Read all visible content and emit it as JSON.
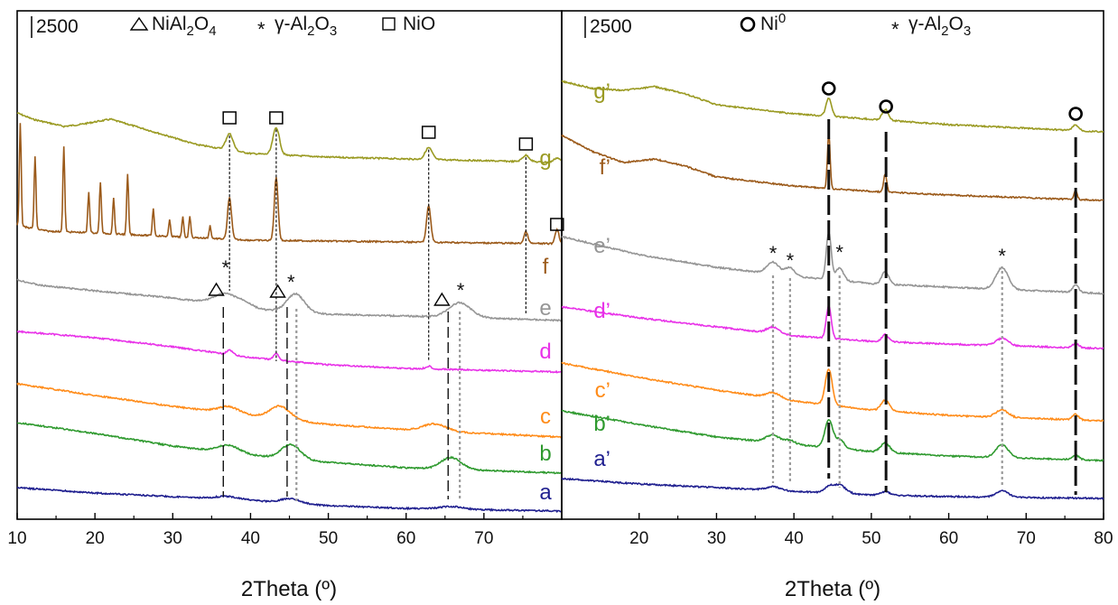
{
  "chart_data": [
    {
      "type": "line",
      "panel": "left",
      "xlabel": "2Theta (º)",
      "ylabel": "",
      "xlim": [
        10,
        80
      ],
      "x_ticks": [
        "10",
        "20",
        "30",
        "40",
        "50",
        "60",
        "70"
      ],
      "scale_bar": "2500",
      "legend": [
        {
          "symbol": "triangle",
          "label": "NiAl",
          "sub1": "2",
          "mid": "O",
          "sub2": "4"
        },
        {
          "symbol": "asterisk",
          "label": "γ-Al",
          "sub1": "2",
          "mid": "O",
          "sub2": "3"
        },
        {
          "symbol": "square",
          "label": "NiO",
          "sub1": "",
          "mid": "",
          "sub2": ""
        }
      ],
      "series": [
        {
          "name": "g",
          "color": "#9a9a22",
          "baseline": 178,
          "rise": [
            [
              10,
              125
            ],
            [
              12,
              132
            ],
            [
              16,
              140
            ],
            [
              18,
              138
            ],
            [
              22,
              132
            ],
            [
              26,
              142
            ],
            [
              33,
              160
            ],
            [
              40,
              170
            ],
            [
              50,
              174
            ],
            [
              80,
              180
            ]
          ],
          "peaks": [
            [
              37.3,
              18,
              0.45
            ],
            [
              43.3,
              30,
              0.42
            ],
            [
              62.9,
              13,
              0.45
            ],
            [
              75.4,
              7,
              0.45
            ],
            [
              79.4,
              5,
              0.4
            ]
          ]
        },
        {
          "name": "f",
          "color": "#9b5a1a",
          "baseline": 269,
          "rise": [
            [
              10,
              250
            ],
            [
              14,
              256
            ],
            [
              20,
              258
            ],
            [
              30,
              262
            ],
            [
              40,
              266
            ],
            [
              60,
              268
            ],
            [
              80,
              270
            ]
          ],
          "peaks": [
            [
              10.4,
              115,
              0.12
            ],
            [
              12.3,
              80,
              0.12
            ],
            [
              16,
              94,
              0.12
            ],
            [
              19.2,
              45,
              0.12
            ],
            [
              20.7,
              57,
              0.12
            ],
            [
              22.4,
              40,
              0.12
            ],
            [
              24.2,
              67,
              0.12
            ],
            [
              27.5,
              30,
              0.12
            ],
            [
              29.6,
              18,
              0.12
            ],
            [
              31.3,
              22,
              0.12
            ],
            [
              32.2,
              24,
              0.12
            ],
            [
              34.8,
              14,
              0.12
            ],
            [
              37.3,
              46,
              0.25
            ],
            [
              43.3,
              70,
              0.24
            ],
            [
              62.9,
              40,
              0.27
            ],
            [
              75.4,
              13,
              0.25
            ],
            [
              79.4,
              16,
              0.25
            ]
          ]
        },
        {
          "name": "e",
          "color": "#959595",
          "baseline": 352,
          "rise": [
            [
              10,
              310
            ],
            [
              13,
              316
            ],
            [
              20,
              322
            ],
            [
              30,
              330
            ],
            [
              35,
              336
            ],
            [
              40,
              342
            ],
            [
              50,
              348
            ],
            [
              60,
              350
            ],
            [
              70,
              352
            ],
            [
              80,
              355
            ]
          ],
          "peaks": [
            [
              36.9,
              13,
              1.6
            ],
            [
              45.8,
              20,
              1.1
            ],
            [
              66.9,
              16,
              1.4
            ],
            [
              39.5,
              4,
              0.9
            ]
          ]
        },
        {
          "name": "d",
          "color": "#e832e8",
          "baseline": 410,
          "rise": [
            [
              10,
              367
            ],
            [
              20,
              374
            ],
            [
              30,
              384
            ],
            [
              40,
              396
            ],
            [
              50,
              404
            ],
            [
              60,
              408
            ],
            [
              80,
              412
            ]
          ],
          "peaks": [
            [
              37.3,
              5,
              0.4
            ],
            [
              43.3,
              7,
              0.35
            ],
            [
              62.9,
              3,
              0.4
            ]
          ]
        },
        {
          "name": "c",
          "color": "#ff8c1a",
          "baseline": 482,
          "rise": [
            [
              10,
              425
            ],
            [
              20,
              438
            ],
            [
              30,
              450
            ],
            [
              40,
              460
            ],
            [
              50,
              470
            ],
            [
              60,
              476
            ],
            [
              80,
              484
            ]
          ],
          "peaks": [
            [
              37.2,
              7,
              1.3
            ],
            [
              43.8,
              14,
              1.3
            ],
            [
              63.7,
              8,
              1.5
            ]
          ]
        },
        {
          "name": "b",
          "color": "#2f9a2f",
          "baseline": 523,
          "rise": [
            [
              10,
              468
            ],
            [
              20,
              480
            ],
            [
              30,
              494
            ],
            [
              40,
              504
            ],
            [
              50,
              512
            ],
            [
              60,
              518
            ],
            [
              80,
              524
            ]
          ],
          "peaks": [
            [
              37.2,
              8,
              1.4
            ],
            [
              45.2,
              16,
              1.2
            ],
            [
              65.8,
              13,
              1.3
            ]
          ]
        },
        {
          "name": "a",
          "color": "#1f1f8f",
          "baseline": 566,
          "rise": [
            [
              10,
              540
            ],
            [
              20,
              546
            ],
            [
              30,
              550
            ],
            [
              40,
              554
            ],
            [
              50,
              560
            ],
            [
              60,
              563
            ],
            [
              80,
              566
            ]
          ],
          "peaks": [
            [
              37,
              3,
              1.5
            ],
            [
              45.2,
              5,
              1.2
            ],
            [
              65.8,
              3,
              1.4
            ]
          ]
        }
      ]
    },
    {
      "type": "line",
      "panel": "right",
      "xlabel": "2Theta (º)",
      "ylabel": "",
      "xlim": [
        10,
        80
      ],
      "x_ticks": [
        "20",
        "30",
        "40",
        "50",
        "60",
        "70",
        "80"
      ],
      "scale_bar": "2500",
      "legend": [
        {
          "symbol": "circle",
          "label": "Ni",
          "sup": "0",
          "sub1": "",
          "mid": "",
          "sub2": ""
        },
        {
          "symbol": "asterisk",
          "label": "γ-Al",
          "sub1": "2",
          "mid": "O",
          "sub2": "3"
        }
      ],
      "series": [
        {
          "name": "g’",
          "color": "#9a9a22",
          "baseline": 145,
          "rise": [
            [
              10,
              90
            ],
            [
              14,
              98
            ],
            [
              18,
              100
            ],
            [
              22,
              96
            ],
            [
              26,
              104
            ],
            [
              30,
              116
            ],
            [
              40,
              126
            ],
            [
              50,
              132
            ],
            [
              60,
              138
            ],
            [
              80,
              146
            ]
          ],
          "peaks": [
            [
              44.5,
              20,
              0.35
            ],
            [
              51.8,
              12,
              0.4
            ],
            [
              76.4,
              6,
              0.4
            ]
          ]
        },
        {
          "name": "f’",
          "color": "#9b5a1a",
          "baseline": 222,
          "rise": [
            [
              10,
              150
            ],
            [
              14,
              168
            ],
            [
              18,
              180
            ],
            [
              22,
              176
            ],
            [
              26,
              184
            ],
            [
              30,
              196
            ],
            [
              40,
              206
            ],
            [
              50,
              212
            ],
            [
              60,
              216
            ],
            [
              80,
              222
            ]
          ],
          "peaks": [
            [
              44.5,
              62,
              0.17
            ],
            [
              51.8,
              20,
              0.2
            ],
            [
              76.4,
              10,
              0.2
            ]
          ]
        },
        {
          "name": "e’",
          "color": "#959595",
          "baseline": 325,
          "rise": [
            [
              10,
              262
            ],
            [
              20,
              282
            ],
            [
              30,
              296
            ],
            [
              40,
              306
            ],
            [
              50,
              314
            ],
            [
              60,
              318
            ],
            [
              80,
              325
            ]
          ],
          "peaks": [
            [
              37.3,
              13,
              0.8
            ],
            [
              39.5,
              9,
              0.6
            ],
            [
              44.5,
              52,
              0.32
            ],
            [
              45.9,
              14,
              0.5
            ],
            [
              51.8,
              14,
              0.45
            ],
            [
              66.9,
              24,
              0.8
            ],
            [
              76.4,
              8,
              0.4
            ]
          ]
        },
        {
          "name": "d’",
          "color": "#e832e8",
          "baseline": 385,
          "rise": [
            [
              10,
              340
            ],
            [
              20,
              352
            ],
            [
              30,
              362
            ],
            [
              40,
              372
            ],
            [
              50,
              378
            ],
            [
              60,
              381
            ],
            [
              80,
              386
            ]
          ],
          "peaks": [
            [
              37.3,
              7,
              0.8
            ],
            [
              44.5,
              36,
              0.32
            ],
            [
              51.8,
              8,
              0.45
            ],
            [
              66.9,
              8,
              0.8
            ],
            [
              76.4,
              5,
              0.4
            ]
          ]
        },
        {
          "name": "c’",
          "color": "#ff8c1a",
          "baseline": 466,
          "rise": [
            [
              10,
              402
            ],
            [
              20,
              418
            ],
            [
              30,
              432
            ],
            [
              40,
              444
            ],
            [
              50,
              454
            ],
            [
              60,
              460
            ],
            [
              80,
              466
            ]
          ],
          "peaks": [
            [
              37.3,
              6,
              0.9
            ],
            [
              44.5,
              40,
              0.45
            ],
            [
              51.8,
              12,
              0.55
            ],
            [
              66.9,
              8,
              0.8
            ],
            [
              76.4,
              6,
              0.4
            ]
          ]
        },
        {
          "name": "b’",
          "color": "#2f9a2f",
          "baseline": 510,
          "rise": [
            [
              10,
              455
            ],
            [
              20,
              470
            ],
            [
              30,
              484
            ],
            [
              40,
              492
            ],
            [
              50,
              500
            ],
            [
              60,
              505
            ],
            [
              80,
              510
            ]
          ],
          "peaks": [
            [
              37.3,
              8,
              0.9
            ],
            [
              39.5,
              4,
              0.6
            ],
            [
              44.5,
              30,
              0.5
            ],
            [
              45.9,
              10,
              0.6
            ],
            [
              51.8,
              10,
              0.6
            ],
            [
              66.9,
              14,
              0.8
            ],
            [
              76.4,
              5,
              0.45
            ]
          ]
        },
        {
          "name": "a’",
          "color": "#1f1f8f",
          "baseline": 552,
          "rise": [
            [
              10,
              530
            ],
            [
              20,
              536
            ],
            [
              30,
              540
            ],
            [
              40,
              544
            ],
            [
              50,
              548
            ],
            [
              60,
              550
            ],
            [
              80,
              552
            ]
          ],
          "peaks": [
            [
              37.3,
              4,
              0.9
            ],
            [
              44.5,
              6,
              0.6
            ],
            [
              45.9,
              9,
              0.8
            ],
            [
              51.8,
              4,
              0.6
            ],
            [
              66.9,
              7,
              0.8
            ]
          ]
        }
      ]
    }
  ]
}
